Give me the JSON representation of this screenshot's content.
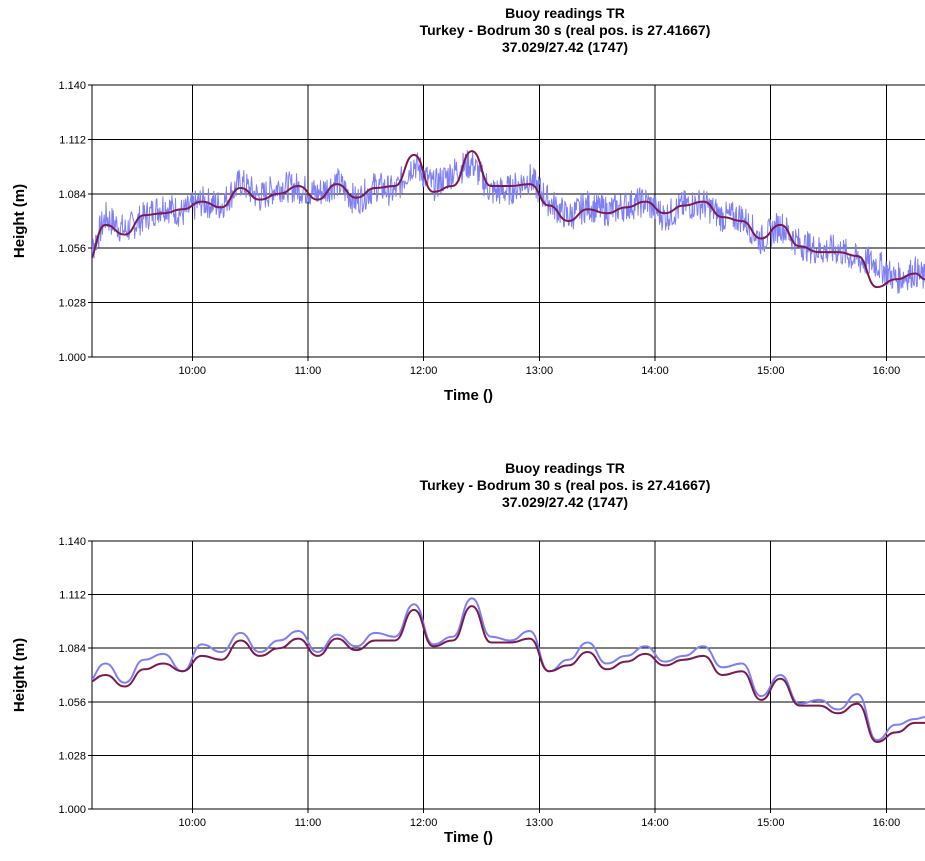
{
  "charts": [
    {
      "title_lines": [
        "Buoy readings TR",
        "Turkey - Bodrum 30 s (real pos. is 27.41667)",
        "37.029/27.42 (1747)"
      ]
    },
    {
      "title_lines": [
        "Buoy readings TR",
        "Turkey - Bodrum 30 s (real pos. is 27.41667)",
        "37.029/27.42 (1747)"
      ]
    }
  ],
  "colors": {
    "raw_series": "#7f7ff5",
    "smooth_series": "#7a1b4e",
    "grid": "#000000"
  },
  "chart_data": [
    {
      "type": "line",
      "title": "Buoy readings TR",
      "subtitle": "Turkey - Bodrum 30 s (real pos. is 27.41667) / 37.029/27.42 (1747)",
      "xlabel": "Time ()",
      "ylabel": "Height (m)",
      "xlim": [
        "09:08",
        "16:20"
      ],
      "ylim": [
        1.0,
        1.14
      ],
      "y_ticks": [
        "1.000",
        "1.028",
        "1.056",
        "1.084",
        "1.112",
        "1.140"
      ],
      "x_ticks": [
        "10:00",
        "11:00",
        "12:00",
        "13:00",
        "14:00",
        "15:00",
        "16:00"
      ],
      "grid": true,
      "series": [
        {
          "style": "noisy",
          "x": [
            "09:05",
            "09:15",
            "09:25",
            "09:35",
            "09:45",
            "09:55",
            "10:05",
            "10:15",
            "10:25",
            "10:35",
            "10:45",
            "10:55",
            "11:05",
            "11:15",
            "11:25",
            "11:35",
            "11:45",
            "11:55",
            "12:05",
            "12:15",
            "12:25",
            "12:35",
            "12:45",
            "12:55",
            "13:05",
            "13:15",
            "13:25",
            "13:35",
            "13:45",
            "13:55",
            "14:05",
            "14:15",
            "14:25",
            "14:35",
            "14:45",
            "14:55",
            "15:05",
            "15:15",
            "15:25",
            "15:35",
            "15:45",
            "15:55",
            "16:05",
            "16:15",
            "16:20"
          ],
          "y": [
            1.048,
            1.072,
            1.065,
            1.072,
            1.078,
            1.074,
            1.08,
            1.078,
            1.09,
            1.082,
            1.088,
            1.087,
            1.084,
            1.09,
            1.08,
            1.088,
            1.085,
            1.1,
            1.088,
            1.095,
            1.1,
            1.085,
            1.086,
            1.092,
            1.08,
            1.072,
            1.078,
            1.075,
            1.078,
            1.08,
            1.072,
            1.078,
            1.079,
            1.072,
            1.072,
            1.06,
            1.068,
            1.058,
            1.055,
            1.055,
            1.05,
            1.048,
            1.04,
            1.044,
            1.04
          ]
        },
        {
          "style": "smooth",
          "x": [
            "09:05",
            "09:15",
            "09:25",
            "09:35",
            "09:45",
            "09:55",
            "10:05",
            "10:15",
            "10:25",
            "10:35",
            "10:45",
            "10:55",
            "11:05",
            "11:15",
            "11:25",
            "11:35",
            "11:45",
            "11:55",
            "12:05",
            "12:15",
            "12:25",
            "12:35",
            "12:45",
            "12:55",
            "13:05",
            "13:15",
            "13:25",
            "13:35",
            "13:45",
            "13:55",
            "14:05",
            "14:15",
            "14:25",
            "14:35",
            "14:45",
            "14:55",
            "15:05",
            "15:15",
            "15:25",
            "15:35",
            "15:45",
            "15:55",
            "16:05",
            "16:15",
            "16:20"
          ],
          "y": [
            1.048,
            1.068,
            1.063,
            1.073,
            1.074,
            1.076,
            1.08,
            1.077,
            1.087,
            1.081,
            1.084,
            1.088,
            1.081,
            1.089,
            1.082,
            1.087,
            1.088,
            1.104,
            1.085,
            1.088,
            1.106,
            1.088,
            1.088,
            1.089,
            1.078,
            1.07,
            1.076,
            1.074,
            1.077,
            1.08,
            1.074,
            1.078,
            1.08,
            1.072,
            1.07,
            1.061,
            1.068,
            1.057,
            1.054,
            1.054,
            1.052,
            1.036,
            1.04,
            1.043,
            1.04
          ]
        }
      ]
    },
    {
      "type": "line",
      "title": "Buoy readings TR",
      "subtitle": "Turkey - Bodrum 30 s (real pos. is 27.41667) / 37.029/27.42 (1747)",
      "xlabel": "Time ()",
      "ylabel": "Height (m)",
      "xlim": [
        "09:08",
        "16:20"
      ],
      "ylim": [
        1.0,
        1.14
      ],
      "y_ticks": [
        "1.000",
        "1.028",
        "1.056",
        "1.084",
        "1.112",
        "1.140"
      ],
      "x_ticks": [
        "10:00",
        "11:00",
        "12:00",
        "13:00",
        "14:00",
        "15:00",
        "16:00"
      ],
      "grid": true,
      "series": [
        {
          "style": "smooth",
          "x": [
            "09:05",
            "09:15",
            "09:25",
            "09:35",
            "09:45",
            "09:55",
            "10:05",
            "10:15",
            "10:25",
            "10:35",
            "10:45",
            "10:55",
            "11:05",
            "11:15",
            "11:25",
            "11:35",
            "11:45",
            "11:55",
            "12:05",
            "12:15",
            "12:25",
            "12:35",
            "12:45",
            "12:55",
            "13:05",
            "13:15",
            "13:25",
            "13:35",
            "13:45",
            "13:55",
            "14:05",
            "14:15",
            "14:25",
            "14:35",
            "14:45",
            "14:55",
            "15:05",
            "15:15",
            "15:25",
            "15:35",
            "15:45",
            "15:55",
            "16:05",
            "16:15",
            "16:20"
          ],
          "y": [
            1.066,
            1.076,
            1.066,
            1.078,
            1.081,
            1.072,
            1.086,
            1.082,
            1.092,
            1.082,
            1.088,
            1.093,
            1.082,
            1.091,
            1.085,
            1.092,
            1.09,
            1.107,
            1.086,
            1.09,
            1.11,
            1.09,
            1.088,
            1.093,
            1.072,
            1.078,
            1.087,
            1.076,
            1.08,
            1.085,
            1.077,
            1.08,
            1.085,
            1.074,
            1.076,
            1.059,
            1.07,
            1.055,
            1.057,
            1.052,
            1.06,
            1.036,
            1.044,
            1.047,
            1.048
          ]
        },
        {
          "style": "smooth",
          "x": [
            "09:05",
            "09:15",
            "09:25",
            "09:35",
            "09:45",
            "09:55",
            "10:05",
            "10:15",
            "10:25",
            "10:35",
            "10:45",
            "10:55",
            "11:05",
            "11:15",
            "11:25",
            "11:35",
            "11:45",
            "11:55",
            "12:05",
            "12:15",
            "12:25",
            "12:35",
            "12:45",
            "12:55",
            "13:05",
            "13:15",
            "13:25",
            "13:35",
            "13:45",
            "13:55",
            "14:05",
            "14:15",
            "14:25",
            "14:35",
            "14:45",
            "14:55",
            "15:05",
            "15:15",
            "15:25",
            "15:35",
            "15:45",
            "15:55",
            "16:05",
            "16:15",
            "16:20"
          ],
          "y": [
            1.066,
            1.07,
            1.064,
            1.073,
            1.076,
            1.072,
            1.08,
            1.078,
            1.088,
            1.08,
            1.084,
            1.089,
            1.08,
            1.089,
            1.083,
            1.088,
            1.088,
            1.104,
            1.085,
            1.088,
            1.106,
            1.087,
            1.087,
            1.089,
            1.072,
            1.075,
            1.082,
            1.073,
            1.077,
            1.081,
            1.075,
            1.078,
            1.08,
            1.07,
            1.072,
            1.057,
            1.068,
            1.054,
            1.054,
            1.05,
            1.055,
            1.035,
            1.04,
            1.045,
            1.045
          ]
        }
      ]
    }
  ]
}
